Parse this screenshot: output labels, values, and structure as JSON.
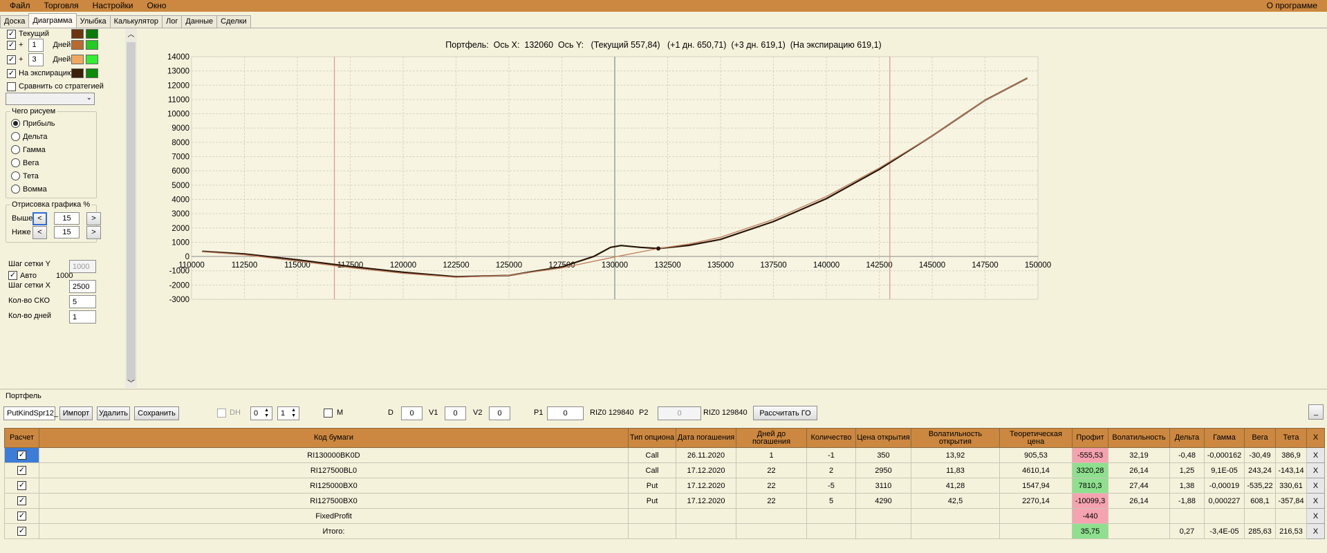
{
  "menu": {
    "file": "Файл",
    "trade": "Торговля",
    "settings": "Настройки",
    "window": "Окно",
    "about": "О программе"
  },
  "tabs": [
    "Доска",
    "Диаграмма",
    "Улыбка",
    "Калькулятор",
    "Лог",
    "Данные",
    "Сделки"
  ],
  "active_tab": "Диаграмма",
  "left": {
    "current_label": "Текущий",
    "plus": "+",
    "days1": "1",
    "days_label": "Дней",
    "days3": "3",
    "expiry_label": "На экспирацию",
    "compare_label": "Сравнить со стратегией",
    "draw_group": "Чего рисуем",
    "radios": [
      "Прибыль",
      "Дельта",
      "Гамма",
      "Вега",
      "Тета",
      "Вомма"
    ],
    "render_group": "Отрисовка графика %",
    "above_label": "Выше",
    "below_label": "Ниже",
    "above_val": "15",
    "below_val": "15",
    "lt": "<",
    "gt": ">",
    "grid_y_label": "Шаг сетки Y",
    "grid_y_val": "1000",
    "auto_label": "Авто",
    "auto_val": "1000",
    "grid_x_label": "Шаг сетки X",
    "grid_x_val": "2500",
    "sko_label": "Кол-во СКО",
    "sko_val": "5",
    "days_count_label": "Кол-во дней",
    "days_count_val": "1"
  },
  "colors": {
    "current1": "#6b3510",
    "current2": "#0a7a0a",
    "d1a": "#b86a30",
    "d1b": "#22cc22",
    "d3a": "#f0a860",
    "d3b": "#33ee33",
    "expa": "#3a2008",
    "expb": "#0a8a0a",
    "menubar": "#cc8840"
  },
  "chart_title": "Портфель:  Ось X:  132060  Ось Y:   (Текущий 557,84)   (+1 дн. 650,71)  (+3 дн. 619,1)  (На экспирацию 619,1)",
  "chart_data": {
    "type": "line",
    "xlim": [
      110000,
      150000
    ],
    "ylim": [
      -3000,
      14000
    ],
    "xticks": [
      110000,
      112500,
      115000,
      117500,
      120000,
      122500,
      125000,
      127500,
      130000,
      132500,
      135000,
      137500,
      140000,
      142500,
      145000,
      147500,
      150000
    ],
    "yticks": [
      -3000,
      -2000,
      -1000,
      0,
      1000,
      2000,
      3000,
      4000,
      5000,
      6000,
      7000,
      8000,
      9000,
      10000,
      11000,
      12000,
      13000,
      14000
    ],
    "grid": true,
    "vlines": [
      {
        "x": 116750,
        "color": "#e89090"
      },
      {
        "x": 130000,
        "color": "#7a9090"
      },
      {
        "x": 143000,
        "color": "#e89090"
      }
    ],
    "marker": {
      "x": 132060,
      "y": 558
    },
    "series": [
      {
        "color": "#2a1505",
        "x": [
          110500,
          112500,
          115000,
          117500,
          120000,
          122500,
          125000,
          127500,
          129000,
          129800,
          130300,
          131200,
          132060,
          133500,
          135000,
          137500,
          140000,
          142500,
          145000,
          147500,
          149500
        ],
        "y": [
          360,
          180,
          -230,
          -700,
          -1100,
          -1420,
          -1330,
          -730,
          0,
          640,
          770,
          640,
          560,
          780,
          1200,
          2450,
          4050,
          6100,
          8450,
          10950,
          12500
        ]
      },
      {
        "color": "#c08060",
        "x": [
          110500,
          112500,
          115000,
          117500,
          120000,
          122500,
          125000,
          127500,
          130000,
          132060,
          133500,
          135000,
          137500,
          140000,
          142500,
          145000,
          147500,
          149500
        ],
        "y": [
          330,
          120,
          -320,
          -780,
          -1180,
          -1460,
          -1320,
          -800,
          -30,
          560,
          870,
          1350,
          2600,
          4200,
          6200,
          8450,
          10950,
          12500
        ]
      }
    ]
  },
  "portfolio_label": "Портфель",
  "toolbar": {
    "strategy": "PutKindSpr12_",
    "import": "Импорт",
    "delete": "Удалить",
    "save": "Сохранить",
    "dh": "DH",
    "dh_v1": "0",
    "dh_v2": "1",
    "m": "M",
    "d_label": "D",
    "d_val": "0",
    "v1_label": "V1",
    "v1_val": "0",
    "v2_label": "V2",
    "v2_val": "0",
    "p1_label": "P1",
    "p1_val": "0",
    "riz1": "RIZ0 129840",
    "p2_label": "P2",
    "p2_val": "0",
    "riz2": "RIZ0 129840",
    "go_btn": "Рассчитать ГО",
    "min": "_"
  },
  "table": {
    "headers": [
      "Расчет",
      "Код бумаги",
      "Тип опциона",
      "Дата погашения",
      "Дней до погашения",
      "Количество",
      "Цена открытия",
      "Волатильность открытия",
      "Теоретическая цена",
      "Профит",
      "Волатильность",
      "Дельта",
      "Гамма",
      "Вега",
      "Тета",
      "X"
    ],
    "rows": [
      {
        "code": "RI130000BK0D",
        "type": "Call",
        "date": "26.11.2020",
        "days": "1",
        "qty": "-1",
        "price": "350",
        "vol_open": "13,92",
        "theo": "905,53",
        "profit": "-555,53",
        "vol": "32,19",
        "delta": "-0,48",
        "gamma": "-0,000162",
        "vega": "-30,49",
        "theta": "386,9",
        "x": "X"
      },
      {
        "code": "RI127500BL0",
        "type": "Call",
        "date": "17.12.2020",
        "days": "22",
        "qty": "2",
        "price": "2950",
        "vol_open": "11,83",
        "theo": "4610,14",
        "profit": "3320,28",
        "vol": "26,14",
        "delta": "1,25",
        "gamma": "9,1E-05",
        "vega": "243,24",
        "theta": "-143,14",
        "x": "X"
      },
      {
        "code": "RI125000BX0",
        "type": "Put",
        "date": "17.12.2020",
        "days": "22",
        "qty": "-5",
        "price": "3110",
        "vol_open": "41,28",
        "theo": "1547,94",
        "profit": "7810,3",
        "vol": "27,44",
        "delta": "1,38",
        "gamma": "-0,00019",
        "vega": "-535,22",
        "theta": "330,61",
        "x": "X"
      },
      {
        "code": "RI127500BX0",
        "type": "Put",
        "date": "17.12.2020",
        "days": "22",
        "qty": "5",
        "price": "4290",
        "vol_open": "42,5",
        "theo": "2270,14",
        "profit": "-10099,3",
        "vol": "26,14",
        "delta": "-1,88",
        "gamma": "0,000227",
        "vega": "608,1",
        "theta": "-357,84",
        "x": "X"
      },
      {
        "code": "FixedProfit",
        "type": "",
        "date": "",
        "days": "",
        "qty": "",
        "price": "",
        "vol_open": "",
        "theo": "",
        "profit": "-440",
        "vol": "",
        "delta": "",
        "gamma": "",
        "vega": "",
        "theta": "",
        "x": "X"
      },
      {
        "code": "Итого:",
        "type": "",
        "date": "",
        "days": "",
        "qty": "",
        "price": "",
        "vol_open": "",
        "theo": "",
        "profit": "35,75",
        "vol": "",
        "delta": "0,27",
        "gamma": "-3,4E-05",
        "vega": "285,63",
        "theta": "216,53",
        "x": "X"
      }
    ],
    "profit_status": [
      "neg",
      "pos",
      "pos",
      "neg",
      "neg",
      "pos"
    ]
  }
}
